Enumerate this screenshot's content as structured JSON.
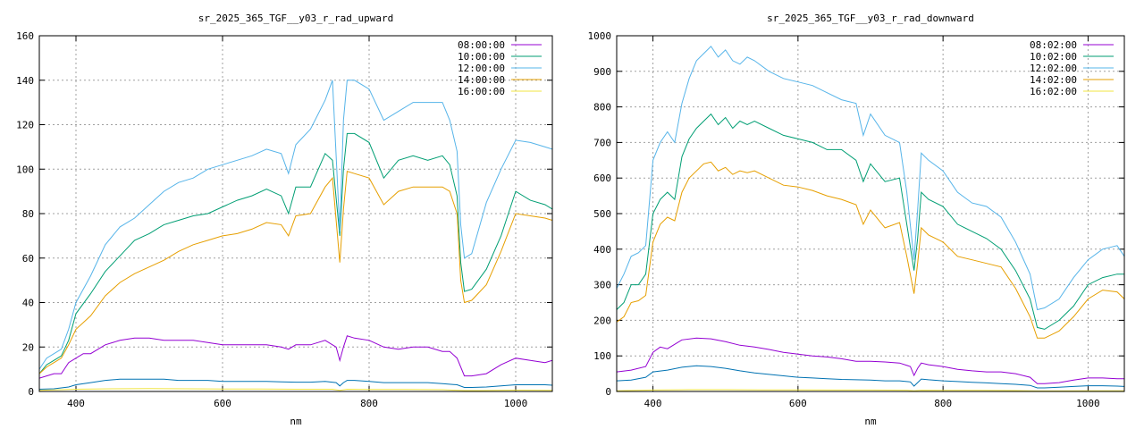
{
  "chart_data": [
    {
      "type": "line",
      "title": "sr_2025_365_TGF__y03_r_rad_upward",
      "xlabel": "nm",
      "ylabel": "",
      "xlim": [
        350,
        1050
      ],
      "ylim": [
        0,
        160
      ],
      "xticks": [
        400,
        600,
        800,
        1000
      ],
      "yticks": [
        0,
        20,
        40,
        60,
        80,
        100,
        120,
        140,
        160
      ],
      "grid": true,
      "legend_position": "top-right",
      "series": [
        {
          "name": "08:00:00",
          "color": "#9400d3",
          "x": [
            350,
            360,
            370,
            380,
            390,
            400,
            410,
            420,
            440,
            460,
            480,
            500,
            520,
            540,
            560,
            580,
            600,
            620,
            640,
            660,
            680,
            690,
            700,
            720,
            740,
            755,
            760,
            765,
            770,
            780,
            800,
            820,
            840,
            860,
            880,
            900,
            910,
            920,
            930,
            940,
            960,
            980,
            1000,
            1020,
            1040,
            1050
          ],
          "y": [
            6,
            7,
            8,
            8,
            13,
            15,
            17,
            17,
            21,
            23,
            24,
            24,
            23,
            23,
            23,
            22,
            21,
            21,
            21,
            21,
            20,
            19,
            21,
            21,
            23,
            20,
            14,
            20,
            25,
            24,
            23,
            20,
            19,
            20,
            20,
            18,
            18,
            15,
            7,
            7,
            8,
            12,
            15,
            14,
            13,
            14
          ]
        },
        {
          "name": "10:00:00",
          "color": "#009e73",
          "x": [
            350,
            360,
            370,
            380,
            390,
            400,
            420,
            440,
            460,
            480,
            500,
            520,
            540,
            560,
            580,
            600,
            620,
            640,
            660,
            680,
            690,
            700,
            720,
            740,
            750,
            760,
            765,
            770,
            780,
            800,
            820,
            840,
            860,
            880,
            900,
            910,
            920,
            925,
            930,
            940,
            960,
            980,
            1000,
            1020,
            1040,
            1050
          ],
          "y": [
            8,
            12,
            14,
            16,
            23,
            35,
            44,
            54,
            61,
            68,
            71,
            75,
            77,
            79,
            80,
            83,
            86,
            88,
            91,
            88,
            80,
            92,
            92,
            107,
            104,
            70,
            100,
            116,
            116,
            112,
            96,
            104,
            106,
            104,
            106,
            102,
            88,
            58,
            45,
            46,
            55,
            70,
            90,
            86,
            84,
            82
          ]
        },
        {
          "name": "12:00:00",
          "color": "#56b4e9",
          "x": [
            350,
            360,
            370,
            380,
            390,
            400,
            420,
            440,
            460,
            480,
            500,
            520,
            540,
            560,
            580,
            600,
            620,
            640,
            660,
            680,
            690,
            700,
            720,
            740,
            750,
            760,
            765,
            770,
            780,
            800,
            820,
            840,
            860,
            880,
            900,
            910,
            920,
            925,
            930,
            940,
            960,
            980,
            1000,
            1020,
            1040,
            1050
          ],
          "y": [
            10,
            15,
            17,
            19,
            28,
            40,
            52,
            66,
            74,
            78,
            84,
            90,
            94,
            96,
            100,
            102,
            104,
            106,
            109,
            107,
            98,
            111,
            118,
            131,
            140,
            72,
            122,
            140,
            140,
            136,
            122,
            126,
            130,
            130,
            130,
            122,
            108,
            75,
            60,
            62,
            85,
            100,
            113,
            112,
            110,
            109
          ]
        },
        {
          "name": "14:00:00",
          "color": "#e69f00",
          "x": [
            350,
            360,
            370,
            380,
            390,
            400,
            420,
            440,
            460,
            480,
            500,
            520,
            540,
            560,
            580,
            600,
            620,
            640,
            660,
            680,
            690,
            700,
            720,
            740,
            750,
            760,
            765,
            770,
            780,
            800,
            820,
            840,
            860,
            880,
            900,
            910,
            920,
            925,
            930,
            940,
            960,
            980,
            1000,
            1020,
            1040,
            1050
          ],
          "y": [
            8,
            11,
            13,
            15,
            21,
            28,
            34,
            43,
            49,
            53,
            56,
            59,
            63,
            66,
            68,
            70,
            71,
            73,
            76,
            75,
            70,
            79,
            80,
            92,
            96,
            58,
            82,
            99,
            98,
            96,
            84,
            90,
            92,
            92,
            92,
            90,
            80,
            50,
            40,
            41,
            48,
            63,
            80,
            79,
            78,
            77
          ]
        },
        {
          "name": "16:00:00",
          "color": "#f0e442",
          "x": [
            350,
            400,
            450,
            500,
            550,
            600,
            650,
            700,
            750,
            760,
            770,
            800,
            850,
            900,
            930,
            950,
            1000,
            1050
          ],
          "y": [
            0.5,
            1,
            1.2,
            1.3,
            1.2,
            1.1,
            1.1,
            1,
            1,
            0.5,
            1,
            0.9,
            0.9,
            0.8,
            0.4,
            0.4,
            0.6,
            0.5
          ]
        },
        {
          "name": "",
          "color": "#0072b2",
          "x": [
            350,
            370,
            390,
            400,
            420,
            440,
            460,
            480,
            500,
            520,
            540,
            560,
            580,
            600,
            620,
            640,
            660,
            680,
            700,
            720,
            740,
            755,
            760,
            765,
            770,
            780,
            800,
            820,
            840,
            860,
            880,
            900,
            920,
            930,
            940,
            960,
            980,
            1000,
            1020,
            1040,
            1050
          ],
          "y": [
            1,
            1.2,
            2,
            3,
            4,
            5,
            5.5,
            5.5,
            5.5,
            5.5,
            5,
            5,
            5,
            4.5,
            4.5,
            4.5,
            4.5,
            4.3,
            4.2,
            4.2,
            4.5,
            4,
            2.5,
            4,
            5,
            5,
            4.5,
            4,
            4,
            4,
            4,
            3.5,
            3,
            1.8,
            1.8,
            2,
            2.5,
            3,
            3,
            3,
            2.8
          ]
        }
      ]
    },
    {
      "type": "line",
      "title": "sr_2025_365_TGF__y03_r_rad_downward",
      "xlabel": "nm",
      "ylabel": "",
      "xlim": [
        350,
        1050
      ],
      "ylim": [
        0,
        1000
      ],
      "xticks": [
        400,
        600,
        800,
        1000
      ],
      "yticks": [
        0,
        100,
        200,
        300,
        400,
        500,
        600,
        700,
        800,
        900,
        1000
      ],
      "grid": true,
      "legend_position": "top-right",
      "series": [
        {
          "name": "08:02:00",
          "color": "#9400d3",
          "x": [
            350,
            370,
            390,
            400,
            410,
            420,
            440,
            460,
            480,
            500,
            520,
            540,
            560,
            580,
            600,
            620,
            640,
            660,
            680,
            700,
            720,
            740,
            755,
            760,
            765,
            770,
            780,
            800,
            820,
            840,
            860,
            880,
            900,
            920,
            930,
            940,
            960,
            980,
            1000,
            1020,
            1040,
            1050
          ],
          "y": [
            55,
            60,
            70,
            110,
            125,
            120,
            145,
            150,
            148,
            140,
            130,
            125,
            118,
            110,
            105,
            100,
            97,
            92,
            85,
            85,
            83,
            80,
            70,
            45,
            65,
            80,
            75,
            70,
            62,
            58,
            55,
            55,
            50,
            40,
            22,
            22,
            25,
            32,
            38,
            38,
            36,
            36
          ]
        },
        {
          "name": "10:02:00",
          "color": "#009e73",
          "x": [
            350,
            360,
            370,
            380,
            390,
            400,
            410,
            420,
            430,
            440,
            450,
            460,
            470,
            480,
            490,
            500,
            510,
            520,
            530,
            540,
            560,
            580,
            600,
            620,
            640,
            660,
            680,
            690,
            700,
            720,
            740,
            750,
            760,
            765,
            770,
            780,
            800,
            820,
            840,
            860,
            880,
            900,
            920,
            930,
            940,
            960,
            980,
            1000,
            1020,
            1040,
            1050
          ],
          "y": [
            230,
            250,
            300,
            300,
            330,
            500,
            540,
            560,
            540,
            660,
            710,
            740,
            760,
            780,
            750,
            770,
            740,
            760,
            750,
            760,
            740,
            720,
            710,
            700,
            680,
            680,
            650,
            590,
            640,
            590,
            600,
            470,
            340,
            430,
            560,
            540,
            520,
            470,
            450,
            430,
            400,
            340,
            260,
            180,
            175,
            200,
            240,
            300,
            320,
            330,
            330
          ]
        },
        {
          "name": "12:02:00",
          "color": "#56b4e9",
          "x": [
            350,
            360,
            370,
            380,
            390,
            400,
            410,
            420,
            430,
            440,
            450,
            460,
            470,
            480,
            490,
            500,
            510,
            520,
            530,
            540,
            560,
            580,
            600,
            620,
            640,
            660,
            680,
            690,
            700,
            720,
            740,
            750,
            760,
            765,
            770,
            780,
            800,
            820,
            840,
            860,
            880,
            900,
            920,
            930,
            940,
            960,
            980,
            1000,
            1020,
            1040,
            1050
          ],
          "y": [
            290,
            330,
            380,
            390,
            410,
            650,
            700,
            730,
            700,
            810,
            880,
            930,
            950,
            970,
            940,
            960,
            930,
            920,
            940,
            930,
            900,
            880,
            870,
            860,
            840,
            820,
            810,
            720,
            780,
            720,
            700,
            560,
            370,
            510,
            670,
            650,
            620,
            560,
            530,
            520,
            490,
            420,
            330,
            230,
            235,
            260,
            320,
            370,
            400,
            410,
            380
          ]
        },
        {
          "name": "14:02:00",
          "color": "#e69f00",
          "x": [
            350,
            360,
            370,
            380,
            390,
            400,
            410,
            420,
            430,
            440,
            450,
            460,
            470,
            480,
            490,
            500,
            510,
            520,
            530,
            540,
            560,
            580,
            600,
            620,
            640,
            660,
            680,
            690,
            700,
            720,
            740,
            750,
            760,
            765,
            770,
            780,
            800,
            820,
            840,
            860,
            880,
            900,
            920,
            930,
            940,
            960,
            980,
            1000,
            1020,
            1040,
            1050
          ],
          "y": [
            195,
            210,
            250,
            255,
            270,
            420,
            470,
            490,
            480,
            560,
            600,
            620,
            640,
            645,
            620,
            630,
            610,
            620,
            615,
            620,
            600,
            580,
            575,
            565,
            550,
            540,
            525,
            470,
            510,
            460,
            475,
            380,
            275,
            360,
            460,
            440,
            420,
            380,
            370,
            360,
            350,
            290,
            210,
            150,
            150,
            170,
            210,
            260,
            285,
            280,
            260
          ]
        },
        {
          "name": "16:02:00",
          "color": "#f0e442",
          "x": [
            350,
            400,
            450,
            500,
            550,
            600,
            650,
            700,
            750,
            760,
            770,
            800,
            850,
            900,
            930,
            950,
            1000,
            1050
          ],
          "y": [
            2,
            4,
            5,
            5,
            4.5,
            4.5,
            4,
            4,
            3.5,
            2,
            3.5,
            3,
            3,
            2.5,
            1.5,
            1.5,
            2,
            2
          ]
        },
        {
          "name": "",
          "color": "#0072b2",
          "x": [
            350,
            370,
            390,
            400,
            420,
            440,
            460,
            480,
            500,
            520,
            540,
            560,
            580,
            600,
            620,
            640,
            660,
            680,
            700,
            720,
            740,
            755,
            760,
            765,
            770,
            780,
            800,
            820,
            840,
            860,
            880,
            900,
            920,
            930,
            940,
            960,
            980,
            1000,
            1020,
            1040,
            1050
          ],
          "y": [
            30,
            32,
            40,
            55,
            60,
            68,
            72,
            70,
            65,
            58,
            52,
            48,
            44,
            40,
            38,
            36,
            34,
            33,
            32,
            30,
            30,
            27,
            15,
            25,
            35,
            33,
            30,
            28,
            26,
            24,
            22,
            20,
            17,
            10,
            10,
            12,
            14,
            16,
            16,
            15,
            14
          ]
        }
      ]
    }
  ]
}
